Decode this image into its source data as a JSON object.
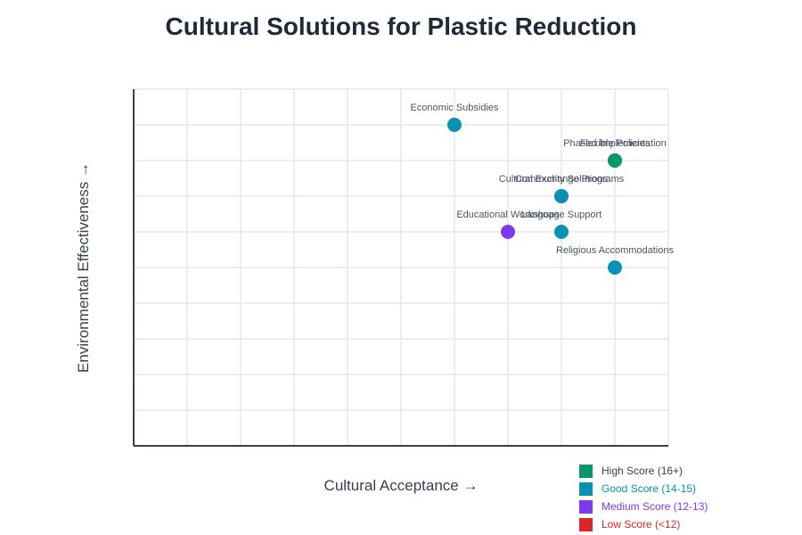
{
  "chart_data": {
    "type": "scatter",
    "title": "Cultural Solutions for Plastic Reduction",
    "xlabel": "Cultural Acceptance →",
    "ylabel": "Environmental Effectiveness →",
    "xlim": [
      0,
      10
    ],
    "ylim": [
      0,
      10
    ],
    "grid": true,
    "legend_position": "bottom-right",
    "points": [
      {
        "label": "Economic Subsidies",
        "x": 6,
        "y": 9,
        "category": "Good Score (14-15)"
      },
      {
        "label": "Phased Implementation",
        "x": 9,
        "y": 8,
        "category": "High Score (16+)"
      },
      {
        "label": "Flexible Policies",
        "x": 9,
        "y": 8,
        "category": "High Score (16+)"
      },
      {
        "label": "Cultural Exchange Programs",
        "x": 8,
        "y": 7,
        "category": "Good Score (14-15)"
      },
      {
        "label": "Community Solutions",
        "x": 8,
        "y": 7,
        "category": "Good Score (14-15)"
      },
      {
        "label": "Educational Workshops",
        "x": 7,
        "y": 6,
        "category": "Medium Score (12-13)"
      },
      {
        "label": "Language Support",
        "x": 8,
        "y": 6,
        "category": "Good Score (14-15)"
      },
      {
        "label": "Religious Accommodations",
        "x": 9,
        "y": 5,
        "category": "Good Score (14-15)"
      }
    ],
    "legend": [
      {
        "label": "High Score (16+)",
        "color": "#059669",
        "text_color": "#374151"
      },
      {
        "label": "Good Score (14-15)",
        "color": "#0891b2",
        "text_color": "#0891b2"
      },
      {
        "label": "Medium Score (12-13)",
        "color": "#7c3aed",
        "text_color": "#7c3aed"
      },
      {
        "label": "Low Score (<12)",
        "color": "#dc2626",
        "text_color": "#dc2626"
      }
    ]
  }
}
